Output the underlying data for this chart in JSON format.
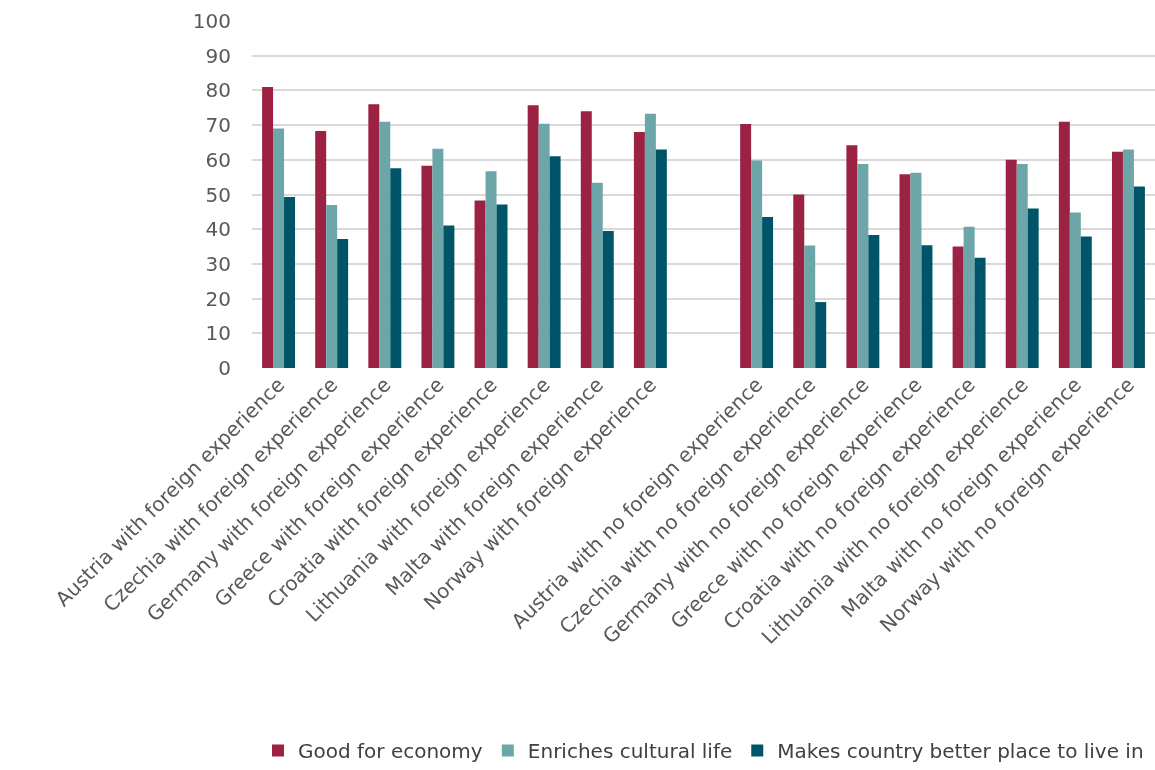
{
  "chart_data": {
    "type": "bar",
    "categories": [
      "Austria with foreign experience",
      "Czechia with foreign experience",
      "Germany with foreign experience",
      "Greece with foreign experience",
      "Croatia with foreign experience",
      "Lithuania with foreign experience",
      "Malta with foreign experience",
      "Norway with foreign experience",
      null,
      "Austria with no foreign experience",
      "Czechia with no foreign experience",
      "Germany with no foreign experience",
      "Greece with no foreign experience",
      "Croatia with no foreign experience",
      "Lithuania with no foreign experience",
      "Malta with no foreign experience",
      "Norway with no foreign experience"
    ],
    "series": [
      {
        "name": "Good for economy",
        "color": "#9b2242",
        "values": [
          81,
          68.3,
          76,
          58.3,
          48.3,
          75.7,
          74,
          68,
          null,
          70.3,
          50,
          64.2,
          55.8,
          35,
          60,
          71,
          62.3
        ]
      },
      {
        "name": "Enriches cultural life",
        "color": "#6ca6a8",
        "values": [
          69,
          47,
          71,
          63.2,
          56.7,
          70.4,
          53.4,
          73.3,
          null,
          59.8,
          35.3,
          58.8,
          56.3,
          40.7,
          58.8,
          44.8,
          63
        ]
      },
      {
        "name": "Makes country better place to live in",
        "color": "#005468",
        "values": [
          49.3,
          37.2,
          57.6,
          41.1,
          47.1,
          61,
          39.5,
          63,
          null,
          43.5,
          19,
          38.3,
          35.4,
          31.8,
          46,
          37.9,
          52.3
        ]
      }
    ],
    "ylim": [
      0,
      100
    ],
    "yticks": [
      0,
      10,
      20,
      30,
      40,
      50,
      60,
      70,
      80,
      90,
      100
    ],
    "grid": "y",
    "legend": "bottom"
  }
}
